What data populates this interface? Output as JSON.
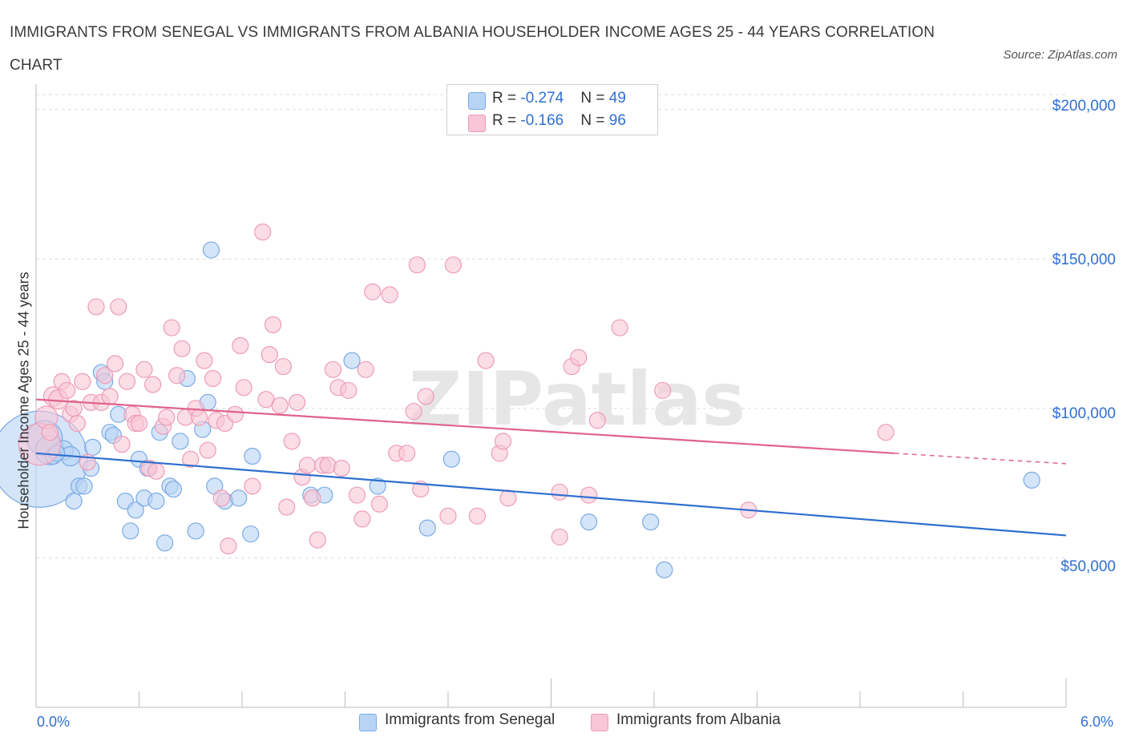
{
  "title": "IMMIGRANTS FROM SENEGAL VS IMMIGRANTS FROM ALBANIA HOUSEHOLDER INCOME AGES 25 - 44 YEARS CORRELATION CHART",
  "source": "Source: ZipAtlas.com",
  "watermark": "ZIPatlas",
  "legend": {
    "senegal": {
      "r_label": "R = ",
      "r_value": "-0.274",
      "n_label": "N = ",
      "n_value": "49"
    },
    "albania": {
      "r_label": "R = ",
      "r_value": "-0.166",
      "n_label": "N = ",
      "n_value": "96"
    }
  },
  "colors": {
    "senegal_fill": "#b8d4f5",
    "senegal_stroke": "#7aaae6",
    "senegal_line": "#2f6fcf",
    "albania_fill": "#f8c6d6",
    "albania_stroke": "#ee9bb6",
    "albania_line": "#e0628a",
    "accent_text": "#2e6fd6",
    "grid": "#dddddd"
  },
  "chart_data": {
    "type": "scatter",
    "title": "IMMIGRANTS FROM SENEGAL VS IMMIGRANTS FROM ALBANIA HOUSEHOLDER INCOME AGES 25 - 44 YEARS CORRELATION CHART",
    "xlabel": "",
    "ylabel": "Householder Income Ages 25 - 44 years",
    "xlim": [
      0,
      6.0
    ],
    "ylim": [
      0,
      205000
    ],
    "x_tick_labels": [
      "0.0%",
      "6.0%"
    ],
    "y_ticks": [
      50000,
      100000,
      150000,
      200000
    ],
    "y_tick_labels": [
      "$50,000",
      "$100,000",
      "$150,000",
      "$200,000"
    ],
    "grid": true,
    "legend_position": "top-center",
    "series": [
      {
        "name": "Immigrants from Senegal",
        "trend": {
          "x": [
            0.0,
            6.0
          ],
          "y": [
            85000,
            57500
          ]
        },
        "points": [
          [
            0.02,
            83000
          ],
          [
            0.05,
            90000
          ],
          [
            0.08,
            86000
          ],
          [
            0.16,
            86000
          ],
          [
            0.2,
            84000
          ],
          [
            0.22,
            69000
          ],
          [
            0.25,
            74000
          ],
          [
            0.28,
            74000
          ],
          [
            0.32,
            80000
          ],
          [
            0.33,
            87000
          ],
          [
            0.38,
            112000
          ],
          [
            0.4,
            109000
          ],
          [
            0.43,
            92000
          ],
          [
            0.45,
            91000
          ],
          [
            0.48,
            98000
          ],
          [
            0.52,
            69000
          ],
          [
            0.55,
            59000
          ],
          [
            0.58,
            66000
          ],
          [
            0.6,
            83000
          ],
          [
            0.63,
            70000
          ],
          [
            0.65,
            80000
          ],
          [
            0.7,
            69000
          ],
          [
            0.72,
            92000
          ],
          [
            0.75,
            55000
          ],
          [
            0.78,
            74000
          ],
          [
            0.8,
            73000
          ],
          [
            0.84,
            89000
          ],
          [
            0.88,
            110000
          ],
          [
            0.93,
            59000
          ],
          [
            0.97,
            93000
          ],
          [
            1.0,
            102000
          ],
          [
            1.02,
            153000
          ],
          [
            1.04,
            74000
          ],
          [
            1.1,
            69000
          ],
          [
            1.18,
            70000
          ],
          [
            1.25,
            58000
          ],
          [
            1.26,
            84000
          ],
          [
            1.6,
            71000
          ],
          [
            1.68,
            71000
          ],
          [
            1.84,
            116000
          ],
          [
            1.99,
            74000
          ],
          [
            2.28,
            60000
          ],
          [
            2.42,
            83000
          ],
          [
            3.22,
            62000
          ],
          [
            3.58,
            62000
          ],
          [
            3.66,
            46000
          ],
          [
            5.8,
            76000
          ],
          [
            0.1,
            84000
          ],
          [
            0.12,
            85000
          ]
        ],
        "sizes": [
          60,
          22,
          18,
          12,
          12,
          10,
          10,
          10,
          10,
          10,
          10,
          10,
          10,
          10,
          10,
          10,
          10,
          10,
          10,
          10,
          10,
          10,
          10,
          10,
          10,
          10,
          10,
          10,
          10,
          10,
          10,
          10,
          10,
          10,
          10,
          10,
          10,
          10,
          10,
          10,
          10,
          10,
          10,
          10,
          10,
          10,
          10,
          10,
          10
        ]
      },
      {
        "name": "Immigrants from Albania",
        "trend": {
          "x": [
            0.0,
            5.0
          ],
          "y": [
            103000,
            85000
          ]
        },
        "trend_dashed": {
          "x": [
            5.0,
            6.0
          ],
          "y": [
            85000,
            81500
          ]
        },
        "points": [
          [
            0.02,
            88000
          ],
          [
            0.06,
            97000
          ],
          [
            0.1,
            104000
          ],
          [
            0.13,
            103000
          ],
          [
            0.15,
            109000
          ],
          [
            0.18,
            106000
          ],
          [
            0.2,
            98000
          ],
          [
            0.22,
            100000
          ],
          [
            0.24,
            95000
          ],
          [
            0.27,
            109000
          ],
          [
            0.3,
            82000
          ],
          [
            0.32,
            102000
          ],
          [
            0.35,
            134000
          ],
          [
            0.38,
            102000
          ],
          [
            0.4,
            111000
          ],
          [
            0.43,
            104000
          ],
          [
            0.46,
            115000
          ],
          [
            0.48,
            134000
          ],
          [
            0.5,
            88000
          ],
          [
            0.53,
            109000
          ],
          [
            0.56,
            98000
          ],
          [
            0.58,
            95000
          ],
          [
            0.6,
            95000
          ],
          [
            0.63,
            113000
          ],
          [
            0.66,
            80000
          ],
          [
            0.68,
            108000
          ],
          [
            0.7,
            79000
          ],
          [
            0.74,
            94000
          ],
          [
            0.76,
            97000
          ],
          [
            0.79,
            127000
          ],
          [
            0.82,
            111000
          ],
          [
            0.85,
            120000
          ],
          [
            0.87,
            97000
          ],
          [
            0.9,
            83000
          ],
          [
            0.93,
            100000
          ],
          [
            0.95,
            97000
          ],
          [
            0.98,
            116000
          ],
          [
            1.0,
            86000
          ],
          [
            1.03,
            110000
          ],
          [
            1.05,
            96000
          ],
          [
            1.08,
            70000
          ],
          [
            1.1,
            95000
          ],
          [
            1.12,
            54000
          ],
          [
            1.16,
            98000
          ],
          [
            1.19,
            121000
          ],
          [
            1.21,
            107000
          ],
          [
            1.26,
            74000
          ],
          [
            1.32,
            159000
          ],
          [
            1.34,
            103000
          ],
          [
            1.36,
            118000
          ],
          [
            1.38,
            128000
          ],
          [
            1.42,
            101000
          ],
          [
            1.44,
            114000
          ],
          [
            1.46,
            67000
          ],
          [
            1.49,
            89000
          ],
          [
            1.52,
            102000
          ],
          [
            1.55,
            77000
          ],
          [
            1.58,
            81000
          ],
          [
            1.61,
            70000
          ],
          [
            1.64,
            56000
          ],
          [
            1.67,
            81000
          ],
          [
            1.7,
            81000
          ],
          [
            1.73,
            113000
          ],
          [
            1.76,
            107000
          ],
          [
            1.78,
            80000
          ],
          [
            1.82,
            106000
          ],
          [
            1.87,
            71000
          ],
          [
            1.9,
            63000
          ],
          [
            1.92,
            113000
          ],
          [
            1.96,
            139000
          ],
          [
            2.0,
            68000
          ],
          [
            2.06,
            138000
          ],
          [
            2.1,
            85000
          ],
          [
            2.16,
            85000
          ],
          [
            2.2,
            99000
          ],
          [
            2.22,
            148000
          ],
          [
            2.24,
            73000
          ],
          [
            2.27,
            104000
          ],
          [
            2.4,
            64000
          ],
          [
            2.43,
            148000
          ],
          [
            2.57,
            64000
          ],
          [
            2.62,
            116000
          ],
          [
            2.7,
            85000
          ],
          [
            2.72,
            89000
          ],
          [
            2.75,
            70000
          ],
          [
            3.05,
            72000
          ],
          [
            3.05,
            57000
          ],
          [
            3.12,
            114000
          ],
          [
            3.16,
            117000
          ],
          [
            3.22,
            71000
          ],
          [
            3.27,
            96000
          ],
          [
            3.4,
            127000
          ],
          [
            3.65,
            106000
          ],
          [
            4.15,
            66000
          ],
          [
            4.95,
            92000
          ],
          [
            0.08,
            92000
          ]
        ],
        "sizes": [
          26,
          14,
          12,
          12,
          10,
          10,
          10,
          10,
          10,
          10,
          10,
          10,
          10,
          10,
          10,
          10,
          10,
          10,
          10,
          10,
          10,
          10,
          10,
          10,
          10,
          10,
          10,
          10,
          10,
          10,
          10,
          10,
          10,
          10,
          10,
          10,
          10,
          10,
          10,
          10,
          10,
          10,
          10,
          10,
          10,
          10,
          10,
          10,
          10,
          10,
          10,
          10,
          10,
          10,
          10,
          10,
          10,
          10,
          10,
          10,
          10,
          10,
          10,
          10,
          10,
          10,
          10,
          10,
          10,
          10,
          10,
          10,
          10,
          10,
          10,
          10,
          10,
          10,
          10,
          10,
          10,
          10,
          10,
          10,
          10,
          10,
          10,
          10,
          10,
          10,
          10,
          10,
          10,
          10,
          10,
          10
        ]
      }
    ]
  }
}
